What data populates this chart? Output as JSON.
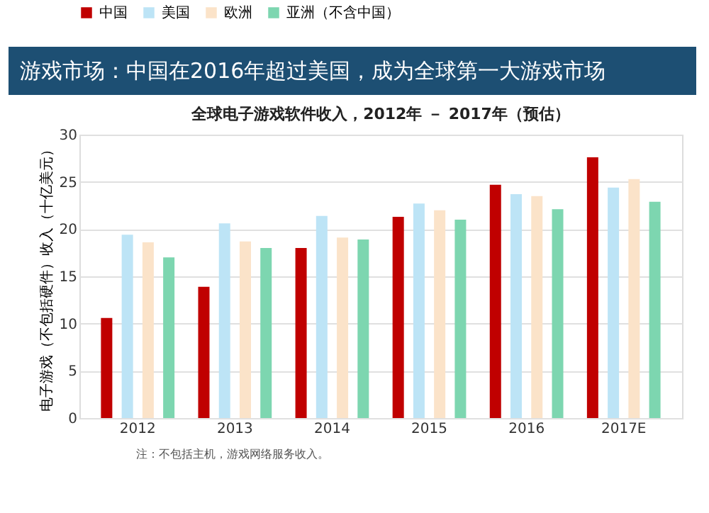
{
  "chart_data": {
    "type": "bar",
    "title": "游戏市场：中国在2016年超过美国，成为全球第一大游戏市场",
    "subtitle": "全球电子游戏软件收入，2012年 － 2017年（预估）",
    "ylabel": "电子游戏（不包括硬件）收入（十亿美元）",
    "categories": [
      "2012",
      "2013",
      "2014",
      "2015",
      "2016",
      "2017E"
    ],
    "series": [
      {
        "name": "中国",
        "color": "#c00000",
        "values": [
          10.6,
          13.9,
          18.0,
          21.3,
          24.7,
          27.6
        ]
      },
      {
        "name": "美国",
        "color": "#bde4f6",
        "values": [
          19.4,
          20.6,
          21.4,
          22.7,
          23.7,
          24.4
        ]
      },
      {
        "name": "欧洲",
        "color": "#fbe3c9",
        "values": [
          18.6,
          18.7,
          19.1,
          22.0,
          23.5,
          25.3
        ]
      },
      {
        "name": "亚洲（不含中国）",
        "color": "#7dd6b0",
        "values": [
          17.0,
          18.0,
          18.9,
          21.0,
          22.1,
          22.9
        ]
      }
    ],
    "ylim": [
      0,
      30
    ],
    "yticks": [
      0,
      5,
      10,
      15,
      20,
      25,
      30
    ],
    "grid": "y",
    "legend": "top",
    "annotations": [
      "注：不包括主机，游戏网络服务收入。"
    ]
  }
}
